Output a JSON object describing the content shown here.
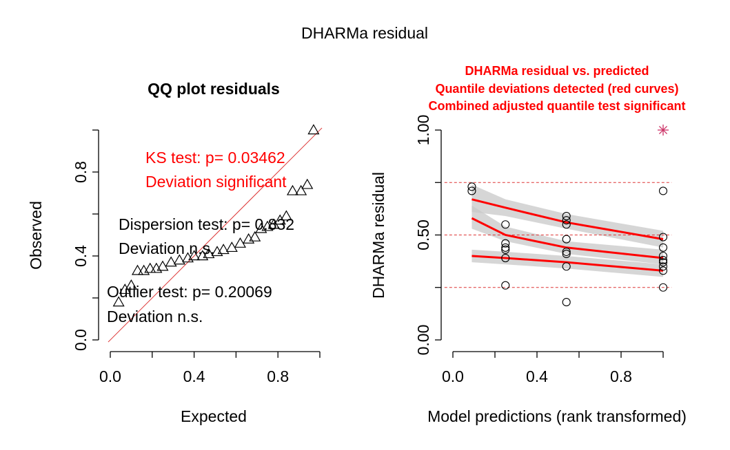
{
  "figure": {
    "title": "DHARMa residual"
  },
  "colors": {
    "axis": "#000000",
    "red": "#ff0000",
    "refline": "#dd3333",
    "band": "#c8c8c8",
    "outlier": "#cc3366"
  },
  "chart_data": [
    {
      "type": "scatter",
      "title": "QQ plot residuals",
      "xlabel": "Expected",
      "ylabel": "Observed",
      "xlim": [
        0,
        1
      ],
      "ylim": [
        0,
        1
      ],
      "x_ticks": [
        0.0,
        0.2,
        0.4,
        0.6,
        0.8,
        1.0
      ],
      "x_tick_labels": [
        "0.0",
        "0.4",
        "0.8"
      ],
      "y_ticks": [
        0.0,
        0.2,
        0.4,
        0.6,
        0.8,
        1.0
      ],
      "y_tick_labels": [
        "0.0",
        "0.4",
        "0.8"
      ],
      "marker": "triangle",
      "reference_line": "y = x",
      "points": [
        [
          0.04,
          0.18
        ],
        [
          0.07,
          0.24
        ],
        [
          0.1,
          0.26
        ],
        [
          0.13,
          0.33
        ],
        [
          0.16,
          0.33
        ],
        [
          0.19,
          0.34
        ],
        [
          0.22,
          0.34
        ],
        [
          0.25,
          0.35
        ],
        [
          0.29,
          0.37
        ],
        [
          0.33,
          0.38
        ],
        [
          0.37,
          0.39
        ],
        [
          0.4,
          0.4
        ],
        [
          0.44,
          0.4
        ],
        [
          0.47,
          0.41
        ],
        [
          0.51,
          0.42
        ],
        [
          0.54,
          0.43
        ],
        [
          0.58,
          0.44
        ],
        [
          0.62,
          0.46
        ],
        [
          0.66,
          0.48
        ],
        [
          0.69,
          0.49
        ],
        [
          0.72,
          0.53
        ],
        [
          0.75,
          0.54
        ],
        [
          0.78,
          0.55
        ],
        [
          0.81,
          0.57
        ],
        [
          0.84,
          0.59
        ],
        [
          0.87,
          0.71
        ],
        [
          0.91,
          0.71
        ],
        [
          0.94,
          0.74
        ],
        [
          0.97,
          1.0
        ]
      ],
      "annotations": {
        "ks_test": "KS test: p= 0.03462",
        "ks_result": "Deviation  significant",
        "dispersion_test": "Dispersion test: p= 0.832",
        "dispersion_result": "Deviation  n.s.",
        "outlier_test": "Outlier test: p= 0.20069",
        "outlier_result": "Deviation  n.s."
      }
    },
    {
      "type": "scatter",
      "title_lines": [
        "DHARMa residual vs. predicted",
        "Quantile deviations detected (red curves)",
        "Combined adjusted quantile test significant"
      ],
      "xlabel": "Model predictions (rank transformed)",
      "ylabel": "DHARMa residual",
      "xlim": [
        0,
        1
      ],
      "ylim": [
        0,
        1
      ],
      "x_ticks": [
        0.0,
        0.2,
        0.4,
        0.6,
        0.8,
        1.0
      ],
      "x_tick_labels": [
        "0.0",
        "0.4",
        "0.8"
      ],
      "y_ticks": [
        0.0,
        0.25,
        0.5,
        0.75,
        1.0
      ],
      "y_tick_labels": [
        "0.00",
        "0.50",
        "1.00"
      ],
      "reference_lines": [
        0.25,
        0.5,
        0.75
      ],
      "marker": "circle",
      "points": [
        [
          0.09,
          0.73
        ],
        [
          0.09,
          0.71
        ],
        [
          0.25,
          0.55
        ],
        [
          0.25,
          0.46
        ],
        [
          0.25,
          0.44
        ],
        [
          0.25,
          0.43
        ],
        [
          0.25,
          0.39
        ],
        [
          0.25,
          0.26
        ],
        [
          0.54,
          0.59
        ],
        [
          0.54,
          0.57
        ],
        [
          0.54,
          0.55
        ],
        [
          0.54,
          0.48
        ],
        [
          0.54,
          0.42
        ],
        [
          0.54,
          0.41
        ],
        [
          0.54,
          0.35
        ],
        [
          0.54,
          0.18
        ],
        [
          1.0,
          0.71
        ],
        [
          1.0,
          0.49
        ],
        [
          1.0,
          0.44
        ],
        [
          1.0,
          0.4
        ],
        [
          1.0,
          0.38
        ],
        [
          1.0,
          0.37
        ],
        [
          1.0,
          0.35
        ],
        [
          1.0,
          0.33
        ],
        [
          1.0,
          0.25
        ]
      ],
      "outlier_points": [
        [
          1.0,
          1.0
        ]
      ],
      "quantile_curves": [
        {
          "quantile": 0.75,
          "line": [
            [
              0.09,
              0.67
            ],
            [
              0.25,
              0.63
            ],
            [
              0.54,
              0.56
            ],
            [
              1.0,
              0.48
            ]
          ],
          "band": [
            [
              0.09,
              0.61,
              0.74
            ],
            [
              0.25,
              0.59,
              0.67
            ],
            [
              0.54,
              0.53,
              0.6
            ],
            [
              1.0,
              0.44,
              0.52
            ]
          ]
        },
        {
          "quantile": 0.5,
          "line": [
            [
              0.09,
              0.58
            ],
            [
              0.25,
              0.5
            ],
            [
              0.54,
              0.44
            ],
            [
              1.0,
              0.39
            ]
          ],
          "band": [
            [
              0.09,
              0.53,
              0.64
            ],
            [
              0.25,
              0.47,
              0.54
            ],
            [
              0.54,
              0.41,
              0.47
            ],
            [
              1.0,
              0.36,
              0.43
            ]
          ]
        },
        {
          "quantile": 0.25,
          "line": [
            [
              0.09,
              0.4
            ],
            [
              0.25,
              0.39
            ],
            [
              0.54,
              0.37
            ],
            [
              1.0,
              0.33
            ]
          ],
          "band": [
            [
              0.09,
              0.37,
              0.43
            ],
            [
              0.25,
              0.36,
              0.42
            ],
            [
              0.54,
              0.34,
              0.4
            ],
            [
              1.0,
              0.3,
              0.36
            ]
          ]
        }
      ]
    }
  ]
}
